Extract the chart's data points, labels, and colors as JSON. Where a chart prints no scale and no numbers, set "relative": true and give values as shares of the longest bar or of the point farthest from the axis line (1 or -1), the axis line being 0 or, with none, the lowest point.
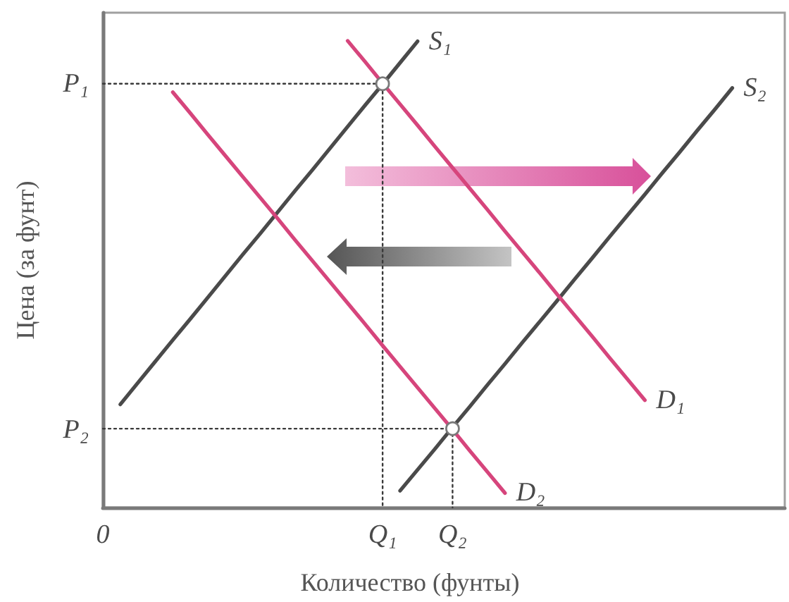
{
  "chart_data": {
    "type": "line",
    "xlabel": "Количество (фунты)",
    "ylabel": "Цена (за фунт)",
    "relative": true,
    "marker": "none",
    "line_style": "solid",
    "categories": [
      "0",
      null,
      null,
      null,
      null,
      null,
      null,
      null,
      null,
      null,
      null,
      null,
      null,
      null,
      null,
      null,
      "Q₁",
      null,
      null,
      null,
      "Q₂",
      null,
      null,
      null,
      null,
      null,
      null,
      null,
      null,
      null,
      null,
      null,
      null,
      null,
      null,
      null,
      null,
      null,
      null,
      null
    ],
    "series": [
      {
        "line_style": "dotted",
        "color": "#3a3a3a",
        "x": [
          "0",
          "Q₁",
          "Q₁"
        ],
        "values": [
          0.908,
          0.908,
          0
        ]
      },
      {
        "line_style": "dotted",
        "color": "#3a3a3a",
        "x": [
          "0",
          "Q₂",
          "Q₂"
        ],
        "values": [
          0.169,
          0.169,
          0
        ]
      },
      {
        "name": "S₁",
        "color": "#4a4a4a",
        "values": [
          null,
          0.221,
          0.267,
          0.313,
          0.359,
          0.404,
          0.45,
          0.496,
          0.542,
          0.587,
          0.633,
          0.679,
          0.724,
          0.77,
          0.816,
          0.862,
          0.907,
          0.953,
          0.999,
          null,
          null,
          null,
          null,
          null,
          null,
          null,
          null,
          null,
          null,
          null,
          null,
          null,
          null,
          null,
          null,
          null,
          null,
          null,
          null,
          null
        ]
      },
      {
        "name": "S₂",
        "color": "#4a4a4a",
        "values": [
          null,
          null,
          null,
          null,
          null,
          null,
          null,
          null,
          null,
          null,
          null,
          null,
          null,
          null,
          null,
          null,
          null,
          0.036,
          0.081,
          0.126,
          0.172,
          0.217,
          0.263,
          0.308,
          0.354,
          0.399,
          0.444,
          0.49,
          0.535,
          0.581,
          0.626,
          0.671,
          0.717,
          0.762,
          0.808,
          0.853,
          0.899,
          null,
          null,
          null
        ]
      },
      {
        "name": "D₁",
        "color": "#d6457c",
        "values": [
          null,
          null,
          null,
          null,
          null,
          null,
          null,
          null,
          null,
          null,
          null,
          null,
          null,
          null,
          1.0,
          0.955,
          0.909,
          0.864,
          0.819,
          0.773,
          0.728,
          0.683,
          0.638,
          0.592,
          0.547,
          0.502,
          0.456,
          0.411,
          0.366,
          0.32,
          0.275,
          0.23,
          null,
          null,
          null,
          null,
          null,
          null,
          null,
          null
        ]
      },
      {
        "name": "D₂",
        "color": "#d6457c",
        "values": [
          null,
          null,
          null,
          null,
          0.89,
          0.845,
          0.799,
          0.754,
          0.709,
          0.664,
          0.619,
          0.573,
          0.528,
          0.483,
          0.438,
          0.393,
          0.347,
          0.302,
          0.257,
          0.212,
          0.167,
          0.121,
          0.076,
          0.031,
          null,
          null,
          null,
          null,
          null,
          null,
          null,
          null,
          null,
          null,
          null,
          null,
          null,
          null,
          null,
          null
        ]
      },
      {
        "type": "scatter",
        "marker": "circle",
        "color": "#ffffff",
        "x": [
          "Q₁",
          "Q₂"
        ],
        "values": [
          0.908,
          0.169
        ]
      }
    ],
    "annotations": [
      {
        "text": "P₁",
        "x": "0",
        "y": 0.908
      },
      {
        "text": "P₂",
        "x": "0",
        "y": 0.169
      }
    ]
  }
}
